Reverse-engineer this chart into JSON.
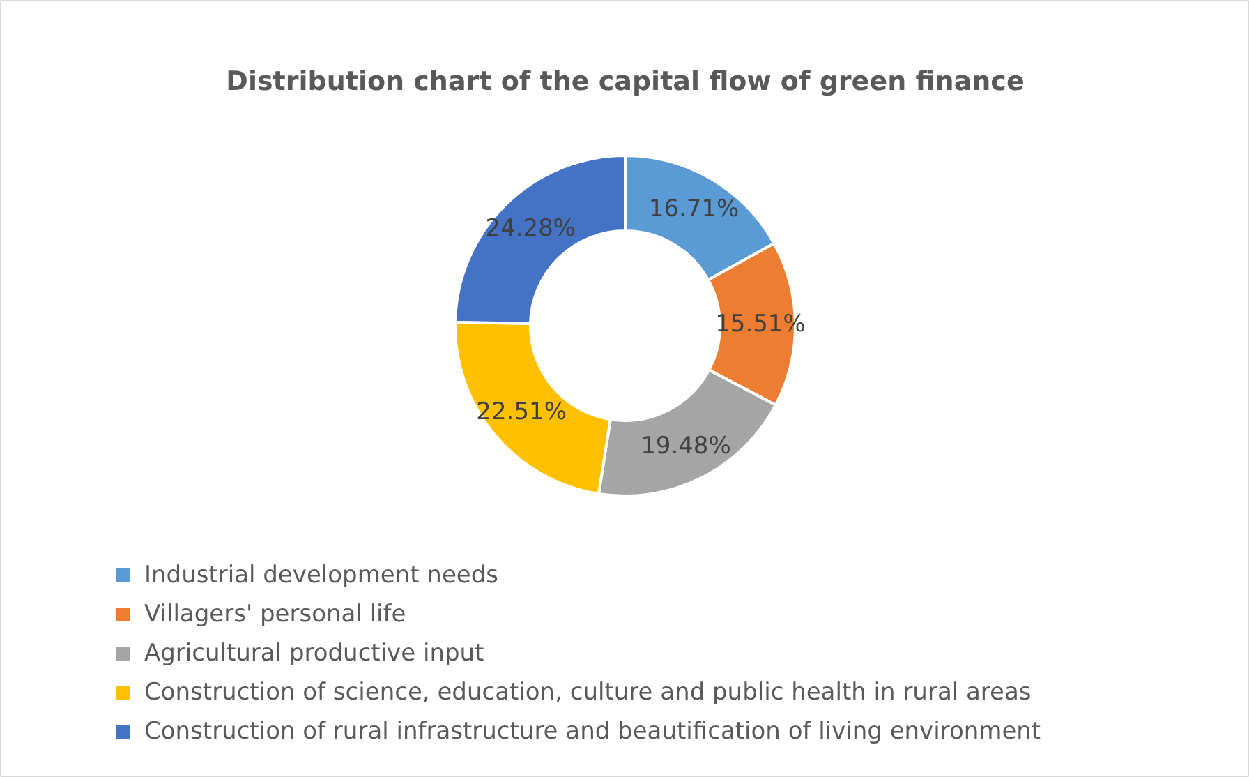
{
  "chart_data": {
    "type": "donut",
    "title": "Distribution chart of the capital flow of green finance",
    "categories": [
      "Industrial development needs",
      " Villagers' personal life",
      "Agricultural productive input",
      "Construction of science, education, culture and public health in rural areas",
      "Construction of rural infrastructure and beautification of living environment"
    ],
    "values": [
      16.71,
      15.51,
      19.48,
      22.51,
      24.28
    ],
    "colors": [
      "#5b9bd5",
      "#ed7d31",
      "#a5a5a5",
      "#ffc000",
      "#4472c4"
    ],
    "value_labels": [
      "16.71%",
      "15.51%",
      "19.48%",
      "22.51%",
      "24.28%"
    ],
    "legend": "bottom"
  }
}
